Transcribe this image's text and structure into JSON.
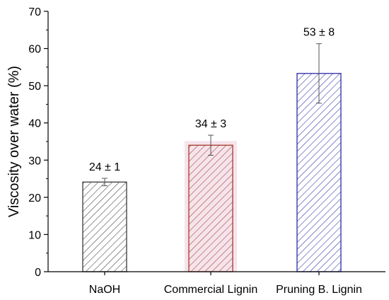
{
  "chart_data": {
    "type": "bar",
    "title": "",
    "xlabel": "",
    "ylabel": "Viscosity over water (%)",
    "ylim": [
      0,
      70
    ],
    "yticks": [
      0,
      10,
      20,
      30,
      40,
      50,
      60,
      70
    ],
    "grid": false,
    "categories": [
      "NaOH",
      "Commercial Lignin",
      "Pruning B. Lignin"
    ],
    "values": [
      24.1,
      34.0,
      53.3
    ],
    "errors": [
      1.0,
      2.7,
      8.0
    ],
    "data_labels": [
      "24 ± 1",
      "34 ± 3",
      "53 ± 8"
    ],
    "colors": [
      "#3a3a3a",
      "#a33b2a",
      "#2a2aa8"
    ],
    "fill_pattern": "diagonal hatch",
    "highlight_bar": "Commercial Lignin",
    "highlight_color": "#f6e4ec"
  }
}
